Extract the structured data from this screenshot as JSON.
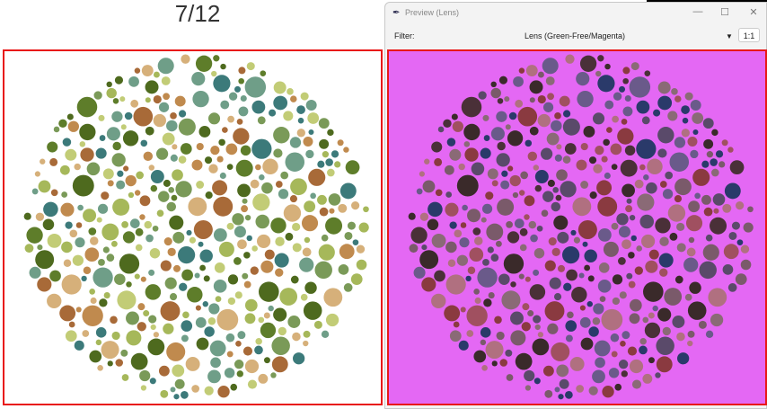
{
  "counter": "7/12",
  "window": {
    "title": "Preview (Lens)",
    "filter_label": "Filter:",
    "filter_value": "Lens (Green-Free/Magenta)",
    "zoom_label": "1:1"
  },
  "colors": {
    "border": "#e81818",
    "lens_background": "#e468f4",
    "original_palette": [
      "#4e6a1e",
      "#5e7d2a",
      "#a6b85a",
      "#c2cc76",
      "#7a9a58",
      "#3c7a7a",
      "#6f9e88",
      "#c08a4e",
      "#a86a38",
      "#d6b07a"
    ],
    "filtered_palette": [
      "#3a2a2a",
      "#4a3038",
      "#7a5a6a",
      "#8a6a76",
      "#5a4a6a",
      "#2a3a6a",
      "#6a5a8a",
      "#a05060",
      "#8a3a40",
      "#b07080"
    ]
  }
}
